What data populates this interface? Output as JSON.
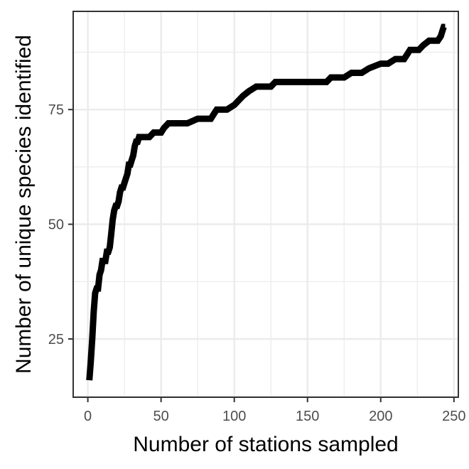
{
  "chart_data": {
    "type": "line",
    "title": "",
    "xlabel": "Number of stations sampled",
    "ylabel": "Number of unique species identified",
    "xlim": [
      -10,
      253
    ],
    "ylim": [
      12.3,
      96.4
    ],
    "x_ticks": [
      0,
      50,
      100,
      150,
      200,
      250
    ],
    "y_ticks": [
      25,
      50,
      75
    ],
    "grid": true,
    "legend": "none",
    "colors": {
      "line": "#000000",
      "grid": "#ebebeb",
      "panel_border": "#333333",
      "tick_text": "#4d4d4d"
    },
    "series": [
      {
        "x": [
          1,
          2,
          3,
          4,
          5,
          6,
          7,
          8,
          9,
          10,
          11,
          12,
          13,
          14,
          15,
          16,
          17,
          18,
          19,
          20,
          21,
          22,
          23,
          24,
          25,
          26,
          27,
          28,
          29,
          30,
          31,
          32,
          33,
          34,
          35,
          36,
          37,
          38,
          39,
          40,
          41,
          42,
          45,
          50,
          52,
          55,
          58,
          62,
          68,
          75,
          84,
          86,
          88,
          95,
          100,
          103,
          106,
          110,
          115,
          120,
          125,
          128,
          135,
          150,
          163,
          166,
          175,
          180,
          187,
          192,
          200,
          205,
          210,
          216,
          218,
          220,
          226,
          229,
          233,
          236,
          239,
          241,
          242,
          243,
          244
        ],
        "y": [
          16,
          20,
          25,
          31,
          35,
          36,
          36,
          39,
          40,
          42,
          42,
          42,
          44,
          44,
          45,
          48,
          51,
          53,
          54,
          54,
          55,
          57,
          58,
          58,
          59,
          60,
          61,
          63,
          63,
          64,
          65,
          67,
          68,
          68,
          69,
          69,
          69,
          69,
          69,
          69,
          69,
          69,
          70,
          70,
          71,
          72,
          72,
          72,
          72,
          73,
          73,
          74,
          75,
          75,
          76,
          77,
          78,
          79,
          80,
          80,
          80,
          81,
          81,
          81,
          81,
          82,
          82,
          83,
          83,
          84,
          85,
          85,
          86,
          86,
          87,
          88,
          88,
          89,
          90,
          90,
          90,
          91,
          92,
          93,
          93
        ]
      }
    ]
  }
}
